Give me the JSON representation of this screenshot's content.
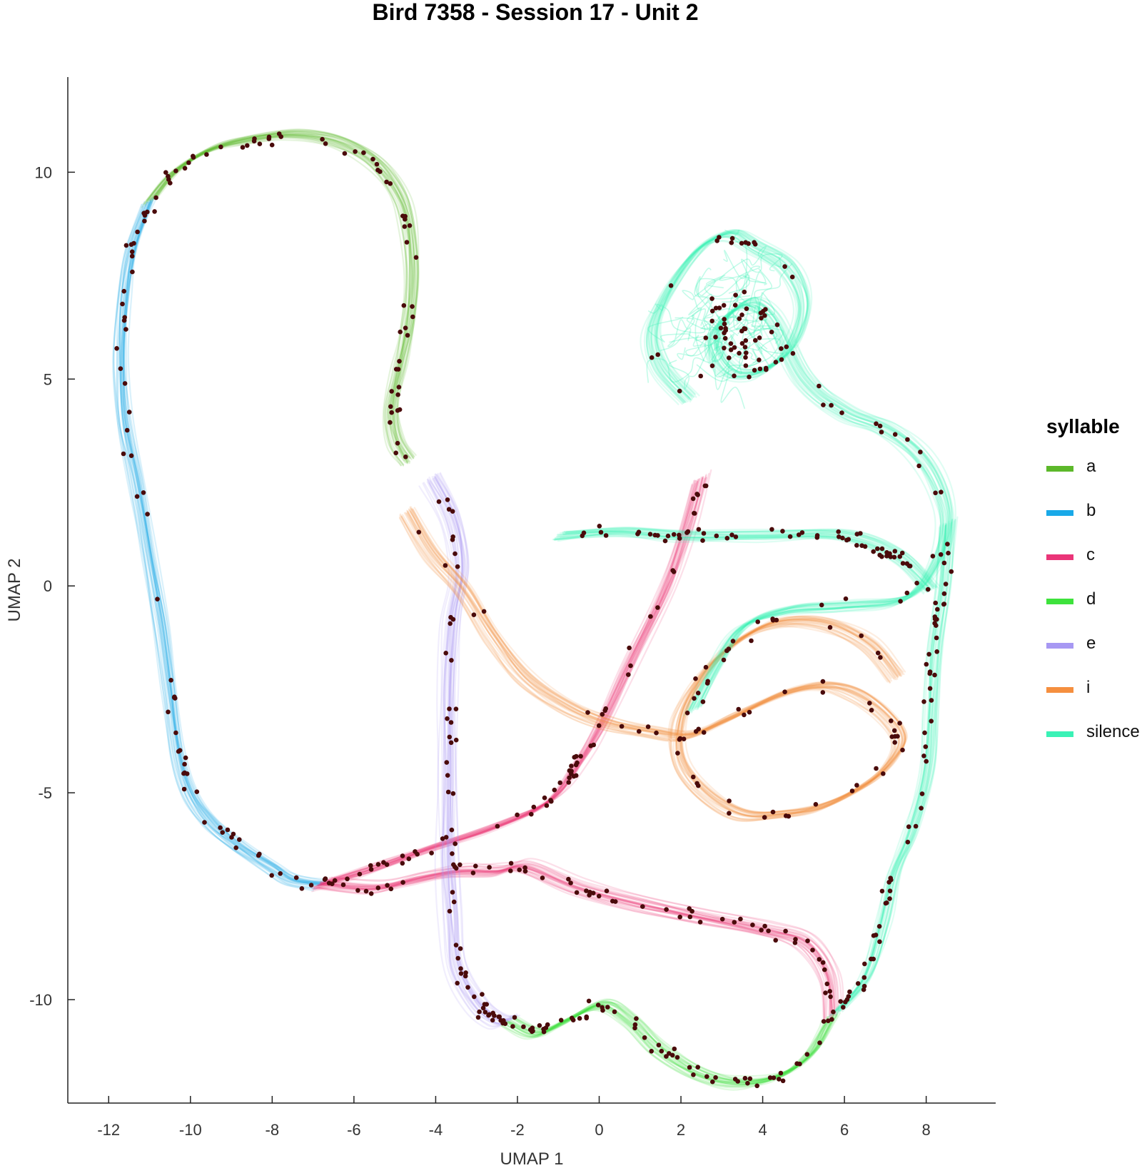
{
  "chart_data": {
    "type": "line",
    "title": "Bird 7358 - Session 17 - Unit 2",
    "xlabel": "UMAP 1",
    "ylabel": "UMAP 2",
    "xlim": [
      -13,
      9.7
    ],
    "ylim": [
      -12.5,
      12.3
    ],
    "xticks": [
      -12,
      -10,
      -8,
      -6,
      -4,
      -2,
      0,
      2,
      4,
      6,
      8
    ],
    "yticks": [
      -10,
      -5,
      0,
      5,
      10
    ],
    "grid": false,
    "legend_position": "right",
    "legend_title": "syllable",
    "series": [
      {
        "name": "a",
        "color": "#5cb82a",
        "points": [
          [
            -11.0,
            9.3
          ],
          [
            -10.4,
            10.0
          ],
          [
            -9.5,
            10.55
          ],
          [
            -8.5,
            10.8
          ],
          [
            -7.5,
            10.9
          ],
          [
            -6.5,
            10.75
          ],
          [
            -5.6,
            10.3
          ],
          [
            -5.0,
            9.6
          ],
          [
            -4.7,
            8.8
          ],
          [
            -4.6,
            7.5
          ],
          [
            -4.7,
            6.3
          ],
          [
            -4.9,
            5.3
          ],
          [
            -5.1,
            4.3
          ],
          [
            -5.0,
            3.5
          ],
          [
            -4.7,
            3.0
          ]
        ]
      },
      {
        "name": "b",
        "color": "#19a9e8",
        "points": [
          [
            -11.0,
            9.3
          ],
          [
            -11.4,
            8.2
          ],
          [
            -11.6,
            7.0
          ],
          [
            -11.7,
            5.5
          ],
          [
            -11.6,
            4.0
          ],
          [
            -11.3,
            2.5
          ],
          [
            -11.0,
            0.8
          ],
          [
            -10.7,
            -1.0
          ],
          [
            -10.5,
            -2.5
          ],
          [
            -10.3,
            -4.0
          ],
          [
            -10.0,
            -5.0
          ],
          [
            -9.5,
            -5.7
          ],
          [
            -8.8,
            -6.3
          ],
          [
            -8.0,
            -6.8
          ],
          [
            -7.5,
            -7.1
          ],
          [
            -6.8,
            -7.2
          ]
        ]
      },
      {
        "name": "c",
        "color": "#ea3578",
        "points": [
          [
            -6.8,
            -7.2
          ],
          [
            -5.5,
            -7.3
          ],
          [
            -4.5,
            -7.1
          ],
          [
            -3.5,
            -6.9
          ],
          [
            -2.5,
            -6.9
          ],
          [
            -1.8,
            -6.8
          ],
          [
            -0.5,
            -7.3
          ],
          [
            1.0,
            -7.7
          ],
          [
            2.5,
            -8.0
          ],
          [
            4.0,
            -8.3
          ],
          [
            5.0,
            -8.6
          ],
          [
            5.6,
            -9.4
          ],
          [
            5.7,
            -10.4
          ]
        ]
      },
      {
        "name": "c",
        "color": "#ea3578",
        "points": [
          [
            -6.8,
            -7.2
          ],
          [
            -5.5,
            -6.8
          ],
          [
            -4.0,
            -6.3
          ],
          [
            -2.5,
            -5.8
          ],
          [
            -1.2,
            -5.2
          ],
          [
            -0.5,
            -4.3
          ],
          [
            0.1,
            -3.3
          ],
          [
            0.8,
            -1.8
          ],
          [
            1.6,
            -0.2
          ],
          [
            2.1,
            1.2
          ],
          [
            2.5,
            2.6
          ]
        ]
      },
      {
        "name": "d",
        "color": "#3ee23c",
        "points": [
          [
            -2.2,
            -10.5
          ],
          [
            -1.5,
            -10.8
          ],
          [
            -0.8,
            -10.5
          ],
          [
            0.1,
            -10.1
          ],
          [
            0.8,
            -10.5
          ],
          [
            1.5,
            -11.2
          ],
          [
            2.5,
            -11.8
          ],
          [
            3.5,
            -12.0
          ],
          [
            4.5,
            -11.8
          ],
          [
            5.2,
            -11.3
          ],
          [
            5.6,
            -10.6
          ],
          [
            5.7,
            -10.4
          ]
        ]
      },
      {
        "name": "e",
        "color": "#a798f3",
        "points": [
          [
            -4.1,
            2.6
          ],
          [
            -3.6,
            1.6
          ],
          [
            -3.4,
            0.4
          ],
          [
            -3.6,
            -0.8
          ],
          [
            -3.7,
            -2.5
          ],
          [
            -3.7,
            -4.5
          ],
          [
            -3.7,
            -6.5
          ],
          [
            -3.6,
            -8.0
          ],
          [
            -3.5,
            -9.2
          ],
          [
            -3.0,
            -10.1
          ],
          [
            -2.5,
            -10.5
          ],
          [
            -2.2,
            -10.5
          ]
        ]
      },
      {
        "name": "i",
        "color": "#f58f3f",
        "points": [
          [
            -4.7,
            1.8
          ],
          [
            -4.1,
            0.8
          ],
          [
            -3.3,
            -0.1
          ],
          [
            -2.6,
            -1.2
          ],
          [
            -1.8,
            -2.2
          ],
          [
            -0.8,
            -2.9
          ],
          [
            0.2,
            -3.3
          ],
          [
            1.2,
            -3.5
          ],
          [
            2.2,
            -3.6
          ],
          [
            3.2,
            -3.2
          ],
          [
            4.5,
            -2.6
          ],
          [
            5.5,
            -2.4
          ],
          [
            6.3,
            -2.6
          ],
          [
            7.0,
            -3.1
          ],
          [
            7.4,
            -3.7
          ],
          [
            7.1,
            -4.3
          ],
          [
            6.5,
            -4.8
          ],
          [
            5.5,
            -5.3
          ],
          [
            4.5,
            -5.5
          ],
          [
            3.5,
            -5.5
          ],
          [
            2.6,
            -5.0
          ],
          [
            2.0,
            -4.2
          ],
          [
            2.0,
            -3.2
          ],
          [
            2.5,
            -2.2
          ],
          [
            3.3,
            -1.4
          ],
          [
            4.3,
            -0.9
          ],
          [
            5.5,
            -0.9
          ],
          [
            6.6,
            -1.4
          ],
          [
            7.3,
            -2.2
          ]
        ]
      },
      {
        "name": "silence",
        "color": "#3af2b6",
        "points": [
          [
            2.2,
            4.5
          ],
          [
            1.5,
            5.3
          ],
          [
            1.3,
            6.2
          ],
          [
            1.8,
            7.3
          ],
          [
            2.5,
            8.2
          ],
          [
            3.2,
            8.5
          ],
          [
            3.8,
            8.2
          ],
          [
            4.6,
            7.7
          ],
          [
            5.0,
            6.8
          ],
          [
            4.7,
            5.8
          ],
          [
            4.0,
            5.2
          ],
          [
            3.2,
            5.2
          ],
          [
            2.8,
            6.0
          ],
          [
            3.5,
            6.8
          ],
          [
            4.2,
            6.5
          ],
          [
            5.0,
            5.0
          ],
          [
            6.0,
            4.2
          ],
          [
            7.0,
            3.8
          ],
          [
            7.8,
            3.2
          ],
          [
            8.3,
            2.4
          ],
          [
            8.5,
            1.5
          ],
          [
            8.2,
            0.5
          ],
          [
            7.5,
            -0.3
          ],
          [
            6.0,
            -0.5
          ],
          [
            4.6,
            -0.6
          ],
          [
            3.5,
            -1.0
          ],
          [
            2.8,
            -2.0
          ],
          [
            2.3,
            -3.0
          ]
        ]
      },
      {
        "name": "silence",
        "color": "#3af2b6",
        "points": [
          [
            8.5,
            1.5
          ],
          [
            8.4,
            0.0
          ],
          [
            8.2,
            -1.5
          ],
          [
            8.1,
            -3.0
          ],
          [
            8.0,
            -4.5
          ],
          [
            7.6,
            -6.0
          ],
          [
            7.2,
            -7.0
          ],
          [
            6.9,
            -8.2
          ],
          [
            6.5,
            -9.5
          ],
          [
            5.8,
            -10.3
          ]
        ]
      },
      {
        "name": "silence",
        "color": "#3af2b6",
        "points": [
          [
            -1.0,
            1.2
          ],
          [
            0.5,
            1.3
          ],
          [
            2.0,
            1.2
          ],
          [
            4.0,
            1.2
          ],
          [
            6.0,
            1.2
          ],
          [
            7.3,
            0.7
          ],
          [
            8.1,
            -0.1
          ]
        ]
      }
    ],
    "spike_count_shown": 640
  }
}
